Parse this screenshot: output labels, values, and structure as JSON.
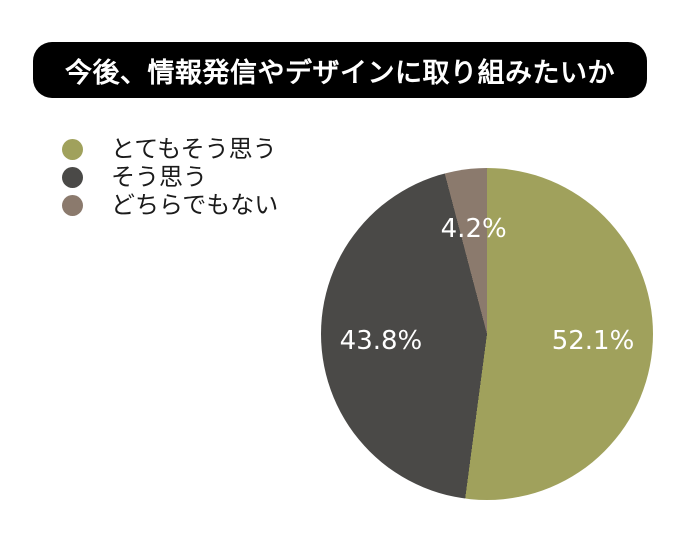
{
  "title": {
    "text": "今後、情報発信やデザインに取り組みたいか"
  },
  "colors": {
    "banner_bg": "#000000",
    "banner_text": "#ffffff",
    "pie_label_text": "#ffffff",
    "legend_text": "#1b1b1b",
    "background": "#ffffff"
  },
  "chart_data": {
    "type": "pie",
    "title": "今後、情報発信やデザインに取り組みたいか",
    "direction": "clockwise",
    "start_angle_deg": 0,
    "legend_position": "upper-left",
    "slices": [
      {
        "label": "とてもそう思う",
        "value": 52.1,
        "display": "52.1%",
        "color": "#A0A15C"
      },
      {
        "label": "そう思う",
        "value": 43.8,
        "display": "43.8%",
        "color": "#4A4947"
      },
      {
        "label": "どちらでもない",
        "value": 4.2,
        "display": "4.2%",
        "color": "#8B7A6D"
      }
    ]
  }
}
